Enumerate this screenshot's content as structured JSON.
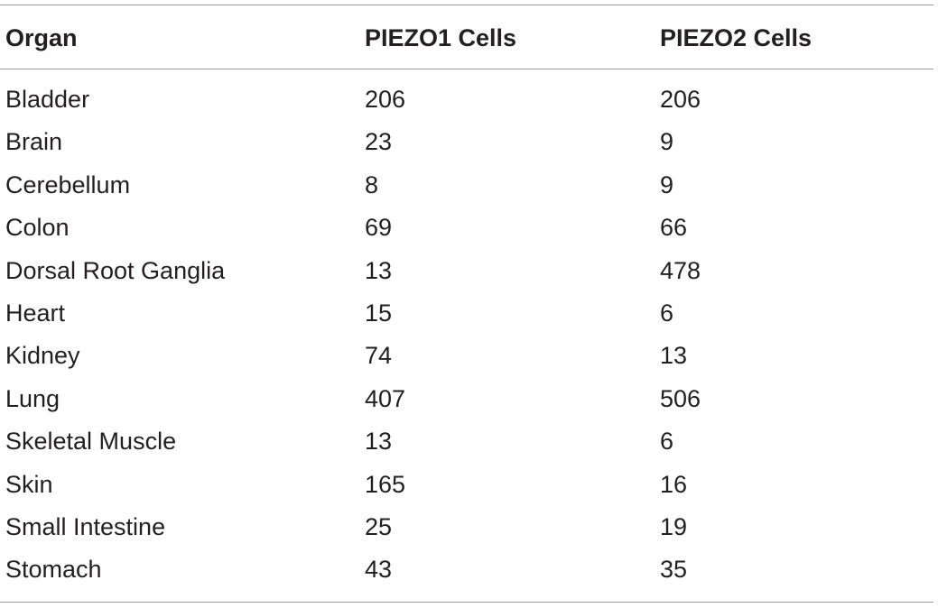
{
  "table": {
    "columns": [
      "Organ",
      "PIEZO1 Cells",
      "PIEZO2 Cells"
    ],
    "rows": [
      [
        "Bladder",
        "206",
        "206"
      ],
      [
        "Brain",
        "23",
        "9"
      ],
      [
        "Cerebellum",
        "8",
        "9"
      ],
      [
        "Colon",
        "69",
        "66"
      ],
      [
        "Dorsal Root Ganglia",
        "13",
        "478"
      ],
      [
        "Heart",
        "15",
        "6"
      ],
      [
        "Kidney",
        "74",
        "13"
      ],
      [
        "Lung",
        "407",
        "506"
      ],
      [
        "Skeletal Muscle",
        "13",
        "6"
      ],
      [
        "Skin",
        "165",
        "16"
      ],
      [
        "Small Intestine",
        "25",
        "19"
      ],
      [
        "Stomach",
        "43",
        "35"
      ]
    ]
  }
}
